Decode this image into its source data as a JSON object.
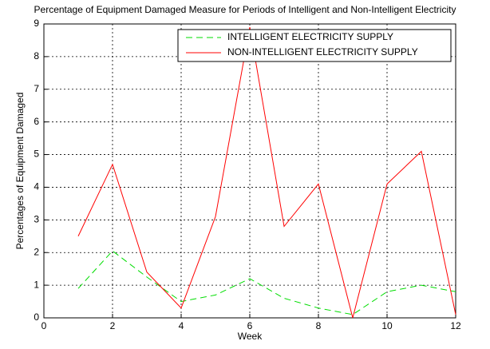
{
  "chart_data": {
    "type": "line",
    "title": "Percentage of Equipment Damaged Measure for Periods of Intelligent and Non-Intelligent Electricity",
    "xlabel": "Week",
    "ylabel": "Percentages of Equipment Damaged",
    "x": [
      1,
      2,
      3,
      4,
      5,
      6,
      7,
      8,
      9,
      10,
      11,
      12
    ],
    "series": [
      {
        "name": "INTELLIGENT ELECTRICITY SUPPLY",
        "color": "#00dd00",
        "linestyle": "dashed",
        "values": [
          0.9,
          2.05,
          1.25,
          0.5,
          0.7,
          1.2,
          0.6,
          0.3,
          0.1,
          0.8,
          1.0,
          0.8
        ]
      },
      {
        "name": "NON-INTELLIGENT ELECTRICITY SUPPLY",
        "color": "#ff0000",
        "linestyle": "solid",
        "values": [
          2.5,
          4.7,
          1.4,
          0.3,
          3.1,
          8.9,
          2.8,
          4.1,
          0.0,
          4.1,
          5.1,
          0.1
        ]
      }
    ],
    "xlim": [
      0,
      12
    ],
    "xticks": [
      0,
      2,
      4,
      6,
      8,
      10,
      12
    ],
    "ylim": [
      0,
      9
    ],
    "yticks": [
      0,
      1,
      2,
      3,
      4,
      5,
      6,
      7,
      8,
      9
    ],
    "grid": true,
    "legend": "upper right"
  }
}
